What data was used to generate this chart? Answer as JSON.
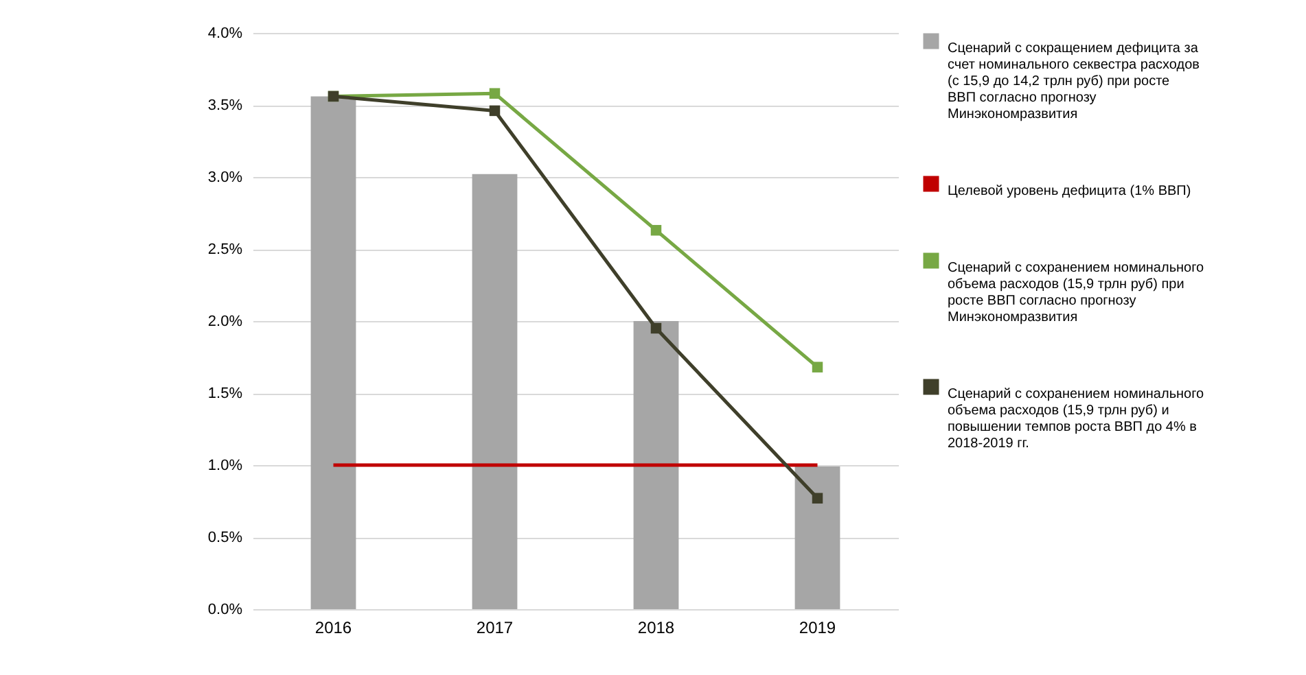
{
  "chart_data": {
    "type": "bar",
    "categories": [
      "2016",
      "2017",
      "2018",
      "2019"
    ],
    "series": [
      {
        "name": "Сценарий с сокращением дефицита за счет номинального секвестра расходов (с 15,9 до 14,2 трлн руб) при росте ВВП согласно прогнозу Минэкономразвития",
        "color": "#a6a6a6",
        "values": [
          3.56,
          3.02,
          2.0,
          0.99
        ]
      },
      {
        "type": "line",
        "marker": "none",
        "name": "Целевой уровень дефицита (1% ВВП)",
        "color": "#c00000",
        "values": [
          1,
          1,
          1,
          1
        ]
      },
      {
        "type": "line",
        "marker": "square",
        "name": "Сценарий с сохранением номинального объема расходов (15,9 трлн руб) при росте ВВП согласно прогнозу Минэкономразвития",
        "color": "#77a844",
        "values": [
          3.56,
          3.58,
          2.63,
          1.68
        ]
      },
      {
        "type": "line",
        "marker": "square",
        "name": "Сценарий с сохранением номинального объема расходов (15,9 трлн руб) и повышении темпов роста ВВП до 4% в 2018-2019 гг.",
        "color": "#3f3f2a",
        "values": [
          3.56,
          3.46,
          1.95,
          0.77
        ]
      }
    ],
    "ylim": [
      0,
      4
    ],
    "yticks": [
      {
        "value": 0,
        "label": "0.0%"
      },
      {
        "value": 0.5,
        "label": "0.5%"
      },
      {
        "value": 1,
        "label": "1.0%"
      },
      {
        "value": 1.5,
        "label": "1.5%"
      },
      {
        "value": 2,
        "label": "2.0%"
      },
      {
        "value": 2.5,
        "label": "2.5%"
      },
      {
        "value": 3,
        "label": "3.0%"
      },
      {
        "value": 3.5,
        "label": "3.5%"
      },
      {
        "value": 4,
        "label": "4.0%"
      }
    ],
    "grid": "y",
    "legend": "right"
  }
}
